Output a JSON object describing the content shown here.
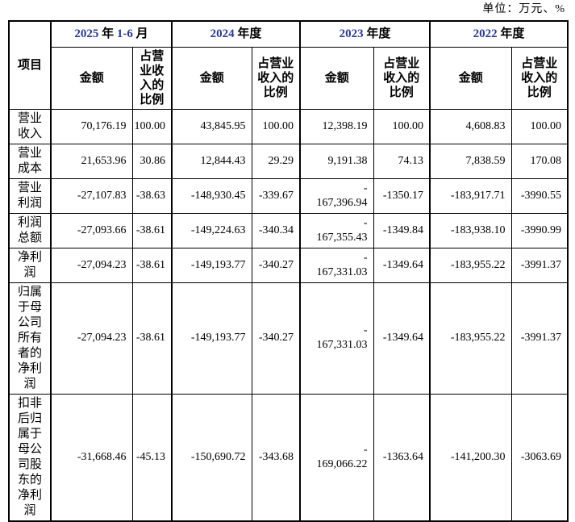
{
  "unit_note": "单位：万元、%",
  "table": {
    "item_header": "项目",
    "amount_header": "金额",
    "ratio_header": "占营业收入的比例",
    "accent_color": "#2b3990",
    "periods": [
      {
        "a": "2025",
        "b": " 年 ",
        "c": "1-6",
        "d": " 月"
      },
      {
        "a": "2024",
        "b": " 年度",
        "c": "",
        "d": ""
      },
      {
        "a": "2023",
        "b": " 年度",
        "c": "",
        "d": ""
      },
      {
        "a": "2022",
        "b": " 年度",
        "c": "",
        "d": ""
      }
    ],
    "rows": [
      {
        "label": "营业收入",
        "values": [
          "70,176.19",
          "100.00",
          "43,845.95",
          "100.00",
          "12,398.19",
          "100.00",
          "4,608.83",
          "100.00"
        ]
      },
      {
        "label": "营业成本",
        "values": [
          "21,653.96",
          "30.86",
          "12,844.43",
          "29.29",
          "9,191.38",
          "74.13",
          "7,838.59",
          "170.08"
        ]
      },
      {
        "label": "营业利润",
        "values": [
          "-27,107.83",
          "-38.63",
          "-148,930.45",
          "-339.67",
          "-\n167,396.94",
          "-1350.17",
          "-183,917.71",
          "-3990.55"
        ]
      },
      {
        "label": "利润总额",
        "values": [
          "-27,093.66",
          "-38.61",
          "-149,224.63",
          "-340.34",
          "-\n167,355.43",
          "-1349.84",
          "-183,938.10",
          "-3990.99"
        ]
      },
      {
        "label": "净利润",
        "values": [
          "-27,094.23",
          "-38.61",
          "-149,193.77",
          "-340.27",
          "-\n167,331.03",
          "-1349.64",
          "-183,955.22",
          "-3991.37"
        ]
      },
      {
        "label": "归属于母公司所有者的净利润",
        "values": [
          "-27,094.23",
          "-38.61",
          "-149,193.77",
          "-340.27",
          "-\n167,331.03",
          "-1349.64",
          "-183,955.22",
          "-3991.37"
        ]
      },
      {
        "label": "扣非后归属于母公司股东的净利润",
        "values": [
          "-31,668.46",
          "-45.13",
          "-150,690.72",
          "-343.68",
          "-\n169,066.22",
          "-1363.64",
          "-141,200.30",
          "-3063.69"
        ]
      }
    ]
  }
}
